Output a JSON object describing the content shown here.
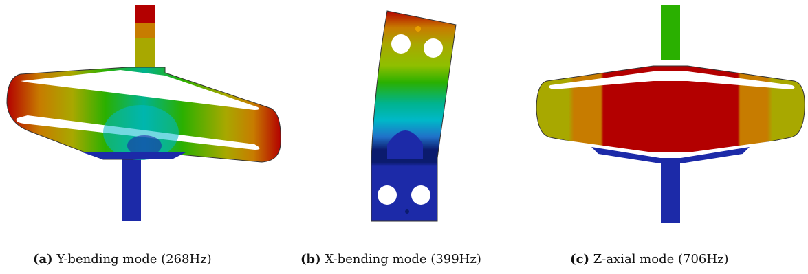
{
  "figures": [
    {
      "tag": "(a)",
      "text": "Y-bending mode (268Hz)"
    },
    {
      "tag": "(b)",
      "text": "X-bending mode (399Hz)"
    },
    {
      "tag": "(c)",
      "text": "Z-axial mode (706Hz)"
    }
  ],
  "colors": {
    "red": "#b30000",
    "orange": "#c77c00",
    "olive": "#a8a800",
    "yellowgreen": "#8fbf00",
    "green": "#2ab000",
    "teal": "#00b38f",
    "cyan": "#00b8c8",
    "blue": "#1c2aa8",
    "darkblue": "#0b1b6e"
  }
}
